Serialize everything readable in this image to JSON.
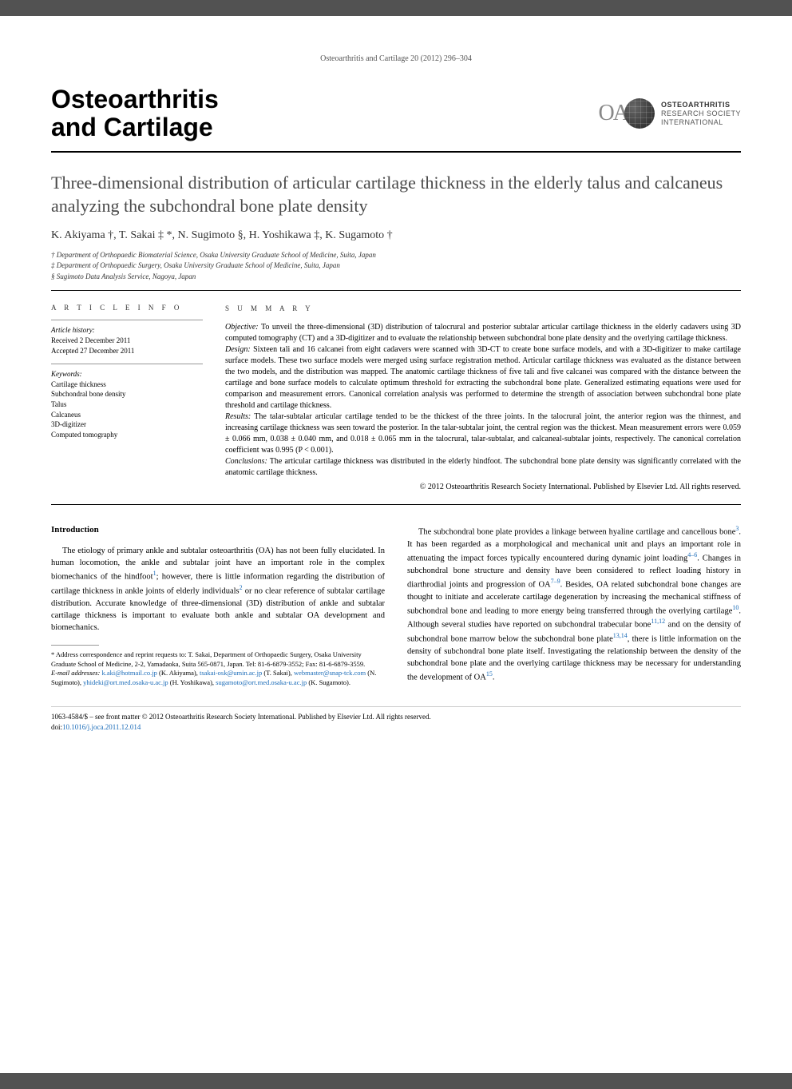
{
  "header": {
    "citation": "Osteoarthritis and Cartilage 20 (2012) 296–304",
    "journal_title_line1": "Osteoarthritis",
    "journal_title_line2": "and Cartilage",
    "logo_letters": "OA",
    "logo_text_line1": "OSTEOARTHRITIS",
    "logo_text_line2": "RESEARCH SOCIETY",
    "logo_text_line3": "INTERNATIONAL"
  },
  "article": {
    "title": "Three-dimensional distribution of articular cartilage thickness in the elderly talus and calcaneus analyzing the subchondral bone plate density",
    "authors": "K. Akiyama †, T. Sakai ‡ *, N. Sugimoto §, H. Yoshikawa ‡, K. Sugamoto †",
    "affiliations": [
      "† Department of Orthopaedic Biomaterial Science, Osaka University Graduate School of Medicine, Suita, Japan",
      "‡ Department of Orthopaedic Surgery, Osaka University Graduate School of Medicine, Suita, Japan",
      "§ Sugimoto Data Analysis Service, Nagoya, Japan"
    ]
  },
  "article_info": {
    "heading": "A R T I C L E  I N F O",
    "history": {
      "label": "Article history:",
      "received": "Received 2 December 2011",
      "accepted": "Accepted 27 December 2011"
    },
    "keywords": {
      "label": "Keywords:",
      "items": [
        "Cartilage thickness",
        "Subchondral bone density",
        "Talus",
        "Calcaneus",
        "3D-digitizer",
        "Computed tomography"
      ]
    }
  },
  "summary": {
    "heading": "S U M M A R Y",
    "objective_label": "Objective:",
    "objective": " To unveil the three-dimensional (3D) distribution of talocrural and posterior subtalar articular cartilage thickness in the elderly cadavers using 3D computed tomography (CT) and a 3D-digitizer and to evaluate the relationship between subchondral bone plate density and the overlying cartilage thickness.",
    "design_label": "Design:",
    "design": " Sixteen tali and 16 calcanei from eight cadavers were scanned with 3D-CT to create bone surface models, and with a 3D-digitizer to make cartilage surface models. These two surface models were merged using surface registration method. Articular cartilage thickness was evaluated as the distance between the two models, and the distribution was mapped. The anatomic cartilage thickness of five tali and five calcanei was compared with the distance between the cartilage and bone surface models to calculate optimum threshold for extracting the subchondral bone plate. Generalized estimating equations were used for comparison and measurement errors. Canonical correlation analysis was performed to determine the strength of association between subchondral bone plate threshold and cartilage thickness.",
    "results_label": "Results:",
    "results": " The talar-subtalar articular cartilage tended to be the thickest of the three joints. In the talocrural joint, the anterior region was the thinnest, and increasing cartilage thickness was seen toward the posterior. In the talar-subtalar joint, the central region was the thickest. Mean measurement errors were 0.059 ± 0.066 mm, 0.038 ± 0.040 mm, and 0.018 ± 0.065 mm in the talocrural, talar-subtalar, and calcaneal-subtalar joints, respectively. The canonical correlation coefficient was 0.995 (P < 0.001).",
    "conclusions_label": "Conclusions:",
    "conclusions": " The articular cartilage thickness was distributed in the elderly hindfoot. The subchondral bone plate density was significantly correlated with the anatomic cartilage thickness.",
    "copyright": "© 2012 Osteoarthritis Research Society International. Published by Elsevier Ltd. All rights reserved."
  },
  "body": {
    "intro_heading": "Introduction",
    "col1_p1_a": "The etiology of primary ankle and subtalar osteoarthritis (OA) has not been fully elucidated. In human locomotion, the ankle and subtalar joint have an important role in the complex biomechanics of the hindfoot",
    "col1_p1_b": "; however, there is little information regarding the distribution of cartilage thickness in ankle joints of elderly individuals",
    "col1_p1_c": " or no clear reference of subtalar cartilage distribution. Accurate knowledge of three-dimensional (3D) distribution of ankle and subtalar cartilage thickness is important to evaluate both ankle and subtalar OA development and biomechanics.",
    "col2_p1_a": "The subchondral bone plate provides a linkage between hyaline cartilage and cancellous bone",
    "col2_p1_b": ". It has been regarded as a morphological and mechanical unit and plays an important role in attenuating the impact forces typically encountered during dynamic joint loading",
    "col2_p1_c": ". Changes in subchondral bone structure and density have been considered to reflect loading history in diarthrodial joints and progression of OA",
    "col2_p1_d": ". Besides, OA related subchondral bone changes are thought to initiate and accelerate cartilage degeneration by increasing the mechanical stiffness of subchondral bone and leading to more energy being transferred through the overlying cartilage",
    "col2_p1_e": ". Although several studies have reported on subchondral trabecular bone",
    "col2_p1_f": " and on the density of subchondral bone marrow below the subchondral bone plate",
    "col2_p1_g": ", there is little information on the density of subchondral bone plate itself. Investigating the relationship between the density of the subchondral bone plate and the overlying cartilage thickness may be necessary for understanding the development of OA",
    "col2_p1_h": ".",
    "refs": {
      "r1": "1",
      "r2": "2",
      "r3": "3",
      "r46": "4–6",
      "r79": "7–9",
      "r10": "10",
      "r1112": "11,12",
      "r1314": "13,14",
      "r15": "15"
    }
  },
  "footnote": {
    "corr": "* Address correspondence and reprint requests to: T. Sakai, Department of Orthopaedic Surgery, Osaka University Graduate School of Medicine, 2-2, Yamadaoka, Suita 565-0871, Japan. Tel: 81-6-6879-3552; Fax: 81-6-6879-3559.",
    "email_label": "E-mail addresses:",
    "emails": [
      {
        "addr": "k.aki@hotmail.co.jp",
        "who": " (K. Akiyama), "
      },
      {
        "addr": "tsakai-osk@umin.ac.jp",
        "who": " (T. Sakai), "
      },
      {
        "addr": "webmaster@snap-tck.com",
        "who": " (N. Sugimoto), "
      },
      {
        "addr": "yhideki@ort.med.osaka-u.ac.jp",
        "who": " (H. Yoshikawa), "
      },
      {
        "addr": "sugamoto@ort.med.osaka-u.ac.jp",
        "who": " (K. Sugamoto)."
      }
    ]
  },
  "footer": {
    "line1": "1063-4584/$ – see front matter © 2012 Osteoarthritis Research Society International. Published by Elsevier Ltd. All rights reserved.",
    "doi_label": "doi:",
    "doi": "10.1016/j.joca.2011.12.014"
  }
}
